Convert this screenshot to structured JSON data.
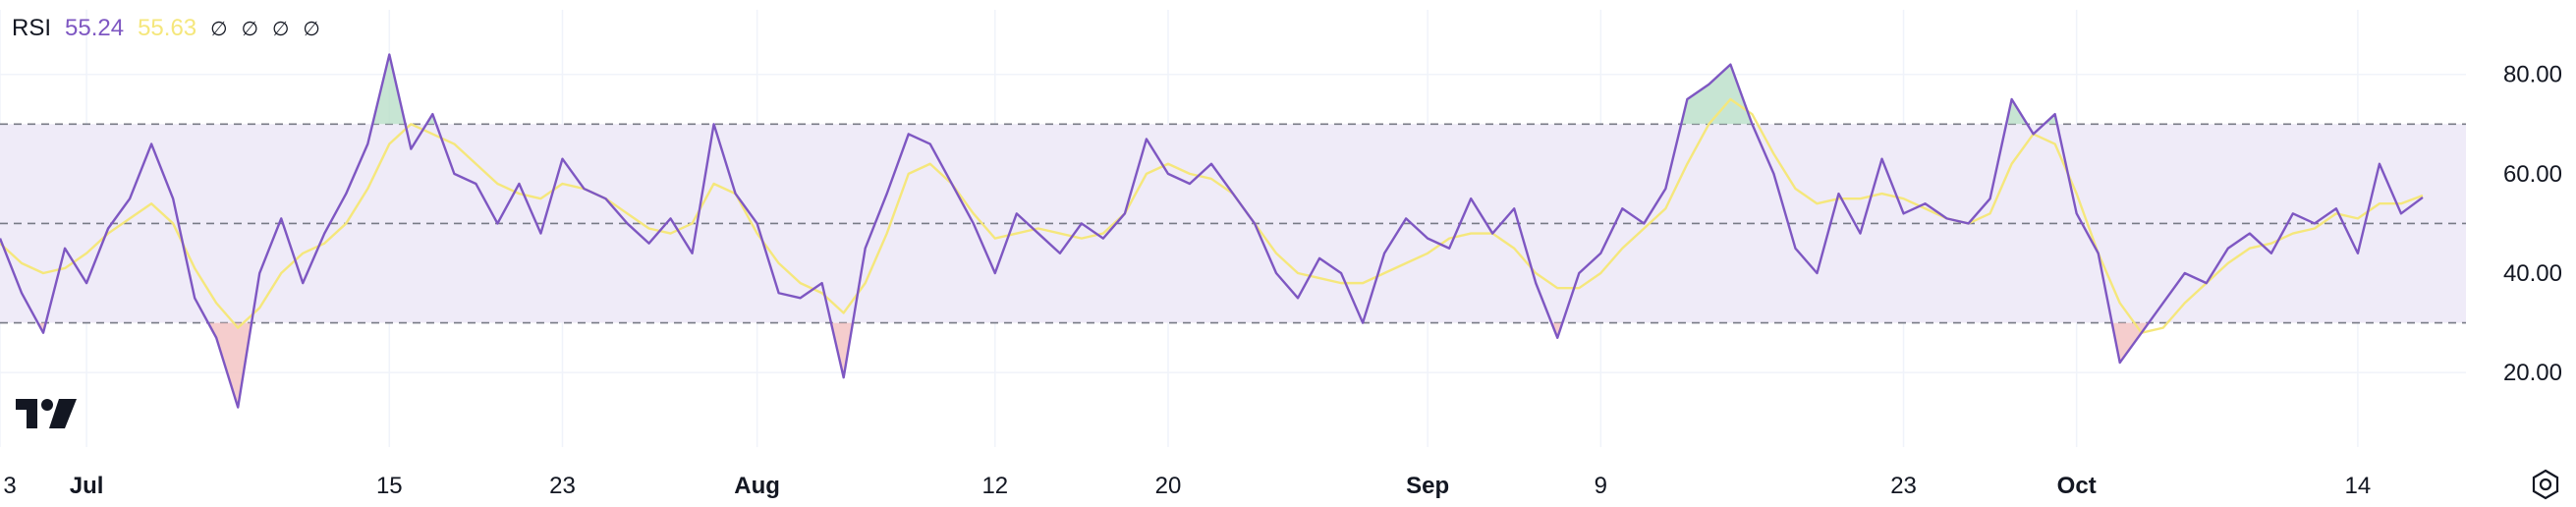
{
  "legend": {
    "indicator": "RSI",
    "rsi_value": "55.24",
    "ma_value": "55.63",
    "hidden_values": [
      "∅",
      "∅",
      "∅",
      "∅"
    ]
  },
  "icons": {
    "logo": "tradingview-logo-icon",
    "settings": "settings-hexagon-icon"
  },
  "colors": {
    "rsi_line": "#7e57c2",
    "ma_line": "#f5e77c",
    "band_fill": "#efebf8",
    "band_line": "#787b86",
    "overbought_fill": "#b9dfc8",
    "oversold_fill": "#f3c0c0"
  },
  "chart_data": {
    "type": "line",
    "ylim": [
      5,
      93
    ],
    "y_ticks": [
      "80.00",
      "60.00",
      "40.00",
      "20.00"
    ],
    "y_tick_values": [
      80,
      60,
      40,
      20
    ],
    "bands": {
      "upper": 70,
      "middle": 50,
      "lower": 30
    },
    "x_range": [
      "2024-06-27",
      "2024-10-19"
    ],
    "x_ticks": [
      {
        "label": "3",
        "date": "2024-06-27"
      },
      {
        "label": "Jul",
        "date": "2024-07-01"
      },
      {
        "label": "15",
        "date": "2024-07-15"
      },
      {
        "label": "23",
        "date": "2024-07-23"
      },
      {
        "label": "Aug",
        "date": "2024-08-01"
      },
      {
        "label": "12",
        "date": "2024-08-12"
      },
      {
        "label": "20",
        "date": "2024-08-20"
      },
      {
        "label": "Sep",
        "date": "2024-09-01"
      },
      {
        "label": "9",
        "date": "2024-09-09"
      },
      {
        "label": "23",
        "date": "2024-09-23"
      },
      {
        "label": "Oct",
        "date": "2024-10-01"
      },
      {
        "label": "14",
        "date": "2024-10-14"
      }
    ],
    "grid": true,
    "series": [
      {
        "key": "rsi",
        "values": [
          [
            "2024-06-27",
            47
          ],
          [
            "2024-06-28",
            36
          ],
          [
            "2024-06-29",
            28
          ],
          [
            "2024-06-30",
            45
          ],
          [
            "2024-07-01",
            38
          ],
          [
            "2024-07-02",
            49
          ],
          [
            "2024-07-03",
            55
          ],
          [
            "2024-07-04",
            66
          ],
          [
            "2024-07-05",
            55
          ],
          [
            "2024-07-06",
            35
          ],
          [
            "2024-07-07",
            27
          ],
          [
            "2024-07-08",
            13
          ],
          [
            "2024-07-09",
            40
          ],
          [
            "2024-07-10",
            51
          ],
          [
            "2024-07-11",
            38
          ],
          [
            "2024-07-12",
            48
          ],
          [
            "2024-07-13",
            56
          ],
          [
            "2024-07-14",
            66
          ],
          [
            "2024-07-15",
            84
          ],
          [
            "2024-07-16",
            65
          ],
          [
            "2024-07-17",
            72
          ],
          [
            "2024-07-18",
            60
          ],
          [
            "2024-07-19",
            58
          ],
          [
            "2024-07-20",
            50
          ],
          [
            "2024-07-21",
            58
          ],
          [
            "2024-07-22",
            48
          ],
          [
            "2024-07-23",
            63
          ],
          [
            "2024-07-24",
            57
          ],
          [
            "2024-07-25",
            55
          ],
          [
            "2024-07-26",
            50
          ],
          [
            "2024-07-27",
            46
          ],
          [
            "2024-07-28",
            51
          ],
          [
            "2024-07-29",
            44
          ],
          [
            "2024-07-30",
            70
          ],
          [
            "2024-07-31",
            56
          ],
          [
            "2024-08-01",
            50
          ],
          [
            "2024-08-02",
            36
          ],
          [
            "2024-08-03",
            35
          ],
          [
            "2024-08-04",
            38
          ],
          [
            "2024-08-05",
            19
          ],
          [
            "2024-08-06",
            45
          ],
          [
            "2024-08-07",
            56
          ],
          [
            "2024-08-08",
            68
          ],
          [
            "2024-08-09",
            66
          ],
          [
            "2024-08-10",
            58
          ],
          [
            "2024-08-11",
            50
          ],
          [
            "2024-08-12",
            40
          ],
          [
            "2024-08-13",
            52
          ],
          [
            "2024-08-14",
            48
          ],
          [
            "2024-08-15",
            44
          ],
          [
            "2024-08-16",
            50
          ],
          [
            "2024-08-17",
            47
          ],
          [
            "2024-08-18",
            52
          ],
          [
            "2024-08-19",
            67
          ],
          [
            "2024-08-20",
            60
          ],
          [
            "2024-08-21",
            58
          ],
          [
            "2024-08-22",
            62
          ],
          [
            "2024-08-23",
            56
          ],
          [
            "2024-08-24",
            50
          ],
          [
            "2024-08-25",
            40
          ],
          [
            "2024-08-26",
            35
          ],
          [
            "2024-08-27",
            43
          ],
          [
            "2024-08-28",
            40
          ],
          [
            "2024-08-29",
            30
          ],
          [
            "2024-08-30",
            44
          ],
          [
            "2024-08-31",
            51
          ],
          [
            "2024-09-01",
            47
          ],
          [
            "2024-09-02",
            45
          ],
          [
            "2024-09-03",
            55
          ],
          [
            "2024-09-04",
            48
          ],
          [
            "2024-09-05",
            53
          ],
          [
            "2024-09-06",
            38
          ],
          [
            "2024-09-07",
            27
          ],
          [
            "2024-09-08",
            40
          ],
          [
            "2024-09-09",
            44
          ],
          [
            "2024-09-10",
            53
          ],
          [
            "2024-09-11",
            50
          ],
          [
            "2024-09-12",
            57
          ],
          [
            "2024-09-13",
            75
          ],
          [
            "2024-09-14",
            78
          ],
          [
            "2024-09-15",
            82
          ],
          [
            "2024-09-16",
            70
          ],
          [
            "2024-09-17",
            60
          ],
          [
            "2024-09-18",
            45
          ],
          [
            "2024-09-19",
            40
          ],
          [
            "2024-09-20",
            56
          ],
          [
            "2024-09-21",
            48
          ],
          [
            "2024-09-22",
            63
          ],
          [
            "2024-09-23",
            52
          ],
          [
            "2024-09-24",
            54
          ],
          [
            "2024-09-25",
            51
          ],
          [
            "2024-09-26",
            50
          ],
          [
            "2024-09-27",
            55
          ],
          [
            "2024-09-28",
            75
          ],
          [
            "2024-09-29",
            68
          ],
          [
            "2024-09-30",
            72
          ],
          [
            "2024-10-01",
            52
          ],
          [
            "2024-10-02",
            44
          ],
          [
            "2024-10-03",
            22
          ],
          [
            "2024-10-04",
            28
          ],
          [
            "2024-10-05",
            34
          ],
          [
            "2024-10-06",
            40
          ],
          [
            "2024-10-07",
            38
          ],
          [
            "2024-10-08",
            45
          ],
          [
            "2024-10-09",
            48
          ],
          [
            "2024-10-10",
            44
          ],
          [
            "2024-10-11",
            52
          ],
          [
            "2024-10-12",
            50
          ],
          [
            "2024-10-13",
            53
          ],
          [
            "2024-10-14",
            44
          ],
          [
            "2024-10-15",
            62
          ],
          [
            "2024-10-16",
            52
          ],
          [
            "2024-10-17",
            55.24
          ]
        ]
      },
      {
        "key": "ma",
        "values": [
          [
            "2024-06-27",
            46
          ],
          [
            "2024-06-28",
            42
          ],
          [
            "2024-06-29",
            40
          ],
          [
            "2024-06-30",
            41
          ],
          [
            "2024-07-01",
            44
          ],
          [
            "2024-07-02",
            48
          ],
          [
            "2024-07-03",
            51
          ],
          [
            "2024-07-04",
            54
          ],
          [
            "2024-07-05",
            50
          ],
          [
            "2024-07-06",
            41
          ],
          [
            "2024-07-07",
            34
          ],
          [
            "2024-07-08",
            29
          ],
          [
            "2024-07-09",
            33
          ],
          [
            "2024-07-10",
            40
          ],
          [
            "2024-07-11",
            44
          ],
          [
            "2024-07-12",
            46
          ],
          [
            "2024-07-13",
            50
          ],
          [
            "2024-07-14",
            57
          ],
          [
            "2024-07-15",
            66
          ],
          [
            "2024-07-16",
            70
          ],
          [
            "2024-07-17",
            68
          ],
          [
            "2024-07-18",
            66
          ],
          [
            "2024-07-19",
            62
          ],
          [
            "2024-07-20",
            58
          ],
          [
            "2024-07-21",
            56
          ],
          [
            "2024-07-22",
            55
          ],
          [
            "2024-07-23",
            58
          ],
          [
            "2024-07-24",
            57
          ],
          [
            "2024-07-25",
            55
          ],
          [
            "2024-07-26",
            52
          ],
          [
            "2024-07-27",
            49
          ],
          [
            "2024-07-28",
            48
          ],
          [
            "2024-07-29",
            50
          ],
          [
            "2024-07-30",
            58
          ],
          [
            "2024-07-31",
            56
          ],
          [
            "2024-08-01",
            48
          ],
          [
            "2024-08-02",
            42
          ],
          [
            "2024-08-03",
            38
          ],
          [
            "2024-08-04",
            36
          ],
          [
            "2024-08-05",
            32
          ],
          [
            "2024-08-06",
            38
          ],
          [
            "2024-08-07",
            48
          ],
          [
            "2024-08-08",
            60
          ],
          [
            "2024-08-09",
            62
          ],
          [
            "2024-08-10",
            58
          ],
          [
            "2024-08-11",
            52
          ],
          [
            "2024-08-12",
            47
          ],
          [
            "2024-08-13",
            48
          ],
          [
            "2024-08-14",
            49
          ],
          [
            "2024-08-15",
            48
          ],
          [
            "2024-08-16",
            47
          ],
          [
            "2024-08-17",
            48
          ],
          [
            "2024-08-18",
            52
          ],
          [
            "2024-08-19",
            60
          ],
          [
            "2024-08-20",
            62
          ],
          [
            "2024-08-21",
            60
          ],
          [
            "2024-08-22",
            59
          ],
          [
            "2024-08-23",
            56
          ],
          [
            "2024-08-24",
            50
          ],
          [
            "2024-08-25",
            44
          ],
          [
            "2024-08-26",
            40
          ],
          [
            "2024-08-27",
            39
          ],
          [
            "2024-08-28",
            38
          ],
          [
            "2024-08-29",
            38
          ],
          [
            "2024-08-30",
            40
          ],
          [
            "2024-08-31",
            42
          ],
          [
            "2024-09-01",
            44
          ],
          [
            "2024-09-02",
            47
          ],
          [
            "2024-09-03",
            48
          ],
          [
            "2024-09-04",
            48
          ],
          [
            "2024-09-05",
            45
          ],
          [
            "2024-09-06",
            40
          ],
          [
            "2024-09-07",
            37
          ],
          [
            "2024-09-08",
            37
          ],
          [
            "2024-09-09",
            40
          ],
          [
            "2024-09-10",
            45
          ],
          [
            "2024-09-11",
            49
          ],
          [
            "2024-09-12",
            53
          ],
          [
            "2024-09-13",
            62
          ],
          [
            "2024-09-14",
            70
          ],
          [
            "2024-09-15",
            75
          ],
          [
            "2024-09-16",
            72
          ],
          [
            "2024-09-17",
            64
          ],
          [
            "2024-09-18",
            57
          ],
          [
            "2024-09-19",
            54
          ],
          [
            "2024-09-20",
            55
          ],
          [
            "2024-09-21",
            55
          ],
          [
            "2024-09-22",
            56
          ],
          [
            "2024-09-23",
            55
          ],
          [
            "2024-09-24",
            53
          ],
          [
            "2024-09-25",
            51
          ],
          [
            "2024-09-26",
            50
          ],
          [
            "2024-09-27",
            52
          ],
          [
            "2024-09-28",
            62
          ],
          [
            "2024-09-29",
            68
          ],
          [
            "2024-09-30",
            66
          ],
          [
            "2024-10-01",
            56
          ],
          [
            "2024-10-02",
            44
          ],
          [
            "2024-10-03",
            34
          ],
          [
            "2024-10-04",
            28
          ],
          [
            "2024-10-05",
            29
          ],
          [
            "2024-10-06",
            34
          ],
          [
            "2024-10-07",
            38
          ],
          [
            "2024-10-08",
            42
          ],
          [
            "2024-10-09",
            45
          ],
          [
            "2024-10-10",
            46
          ],
          [
            "2024-10-11",
            48
          ],
          [
            "2024-10-12",
            49
          ],
          [
            "2024-10-13",
            52
          ],
          [
            "2024-10-14",
            51
          ],
          [
            "2024-10-15",
            54
          ],
          [
            "2024-10-16",
            54
          ],
          [
            "2024-10-17",
            55.63
          ]
        ]
      }
    ]
  }
}
